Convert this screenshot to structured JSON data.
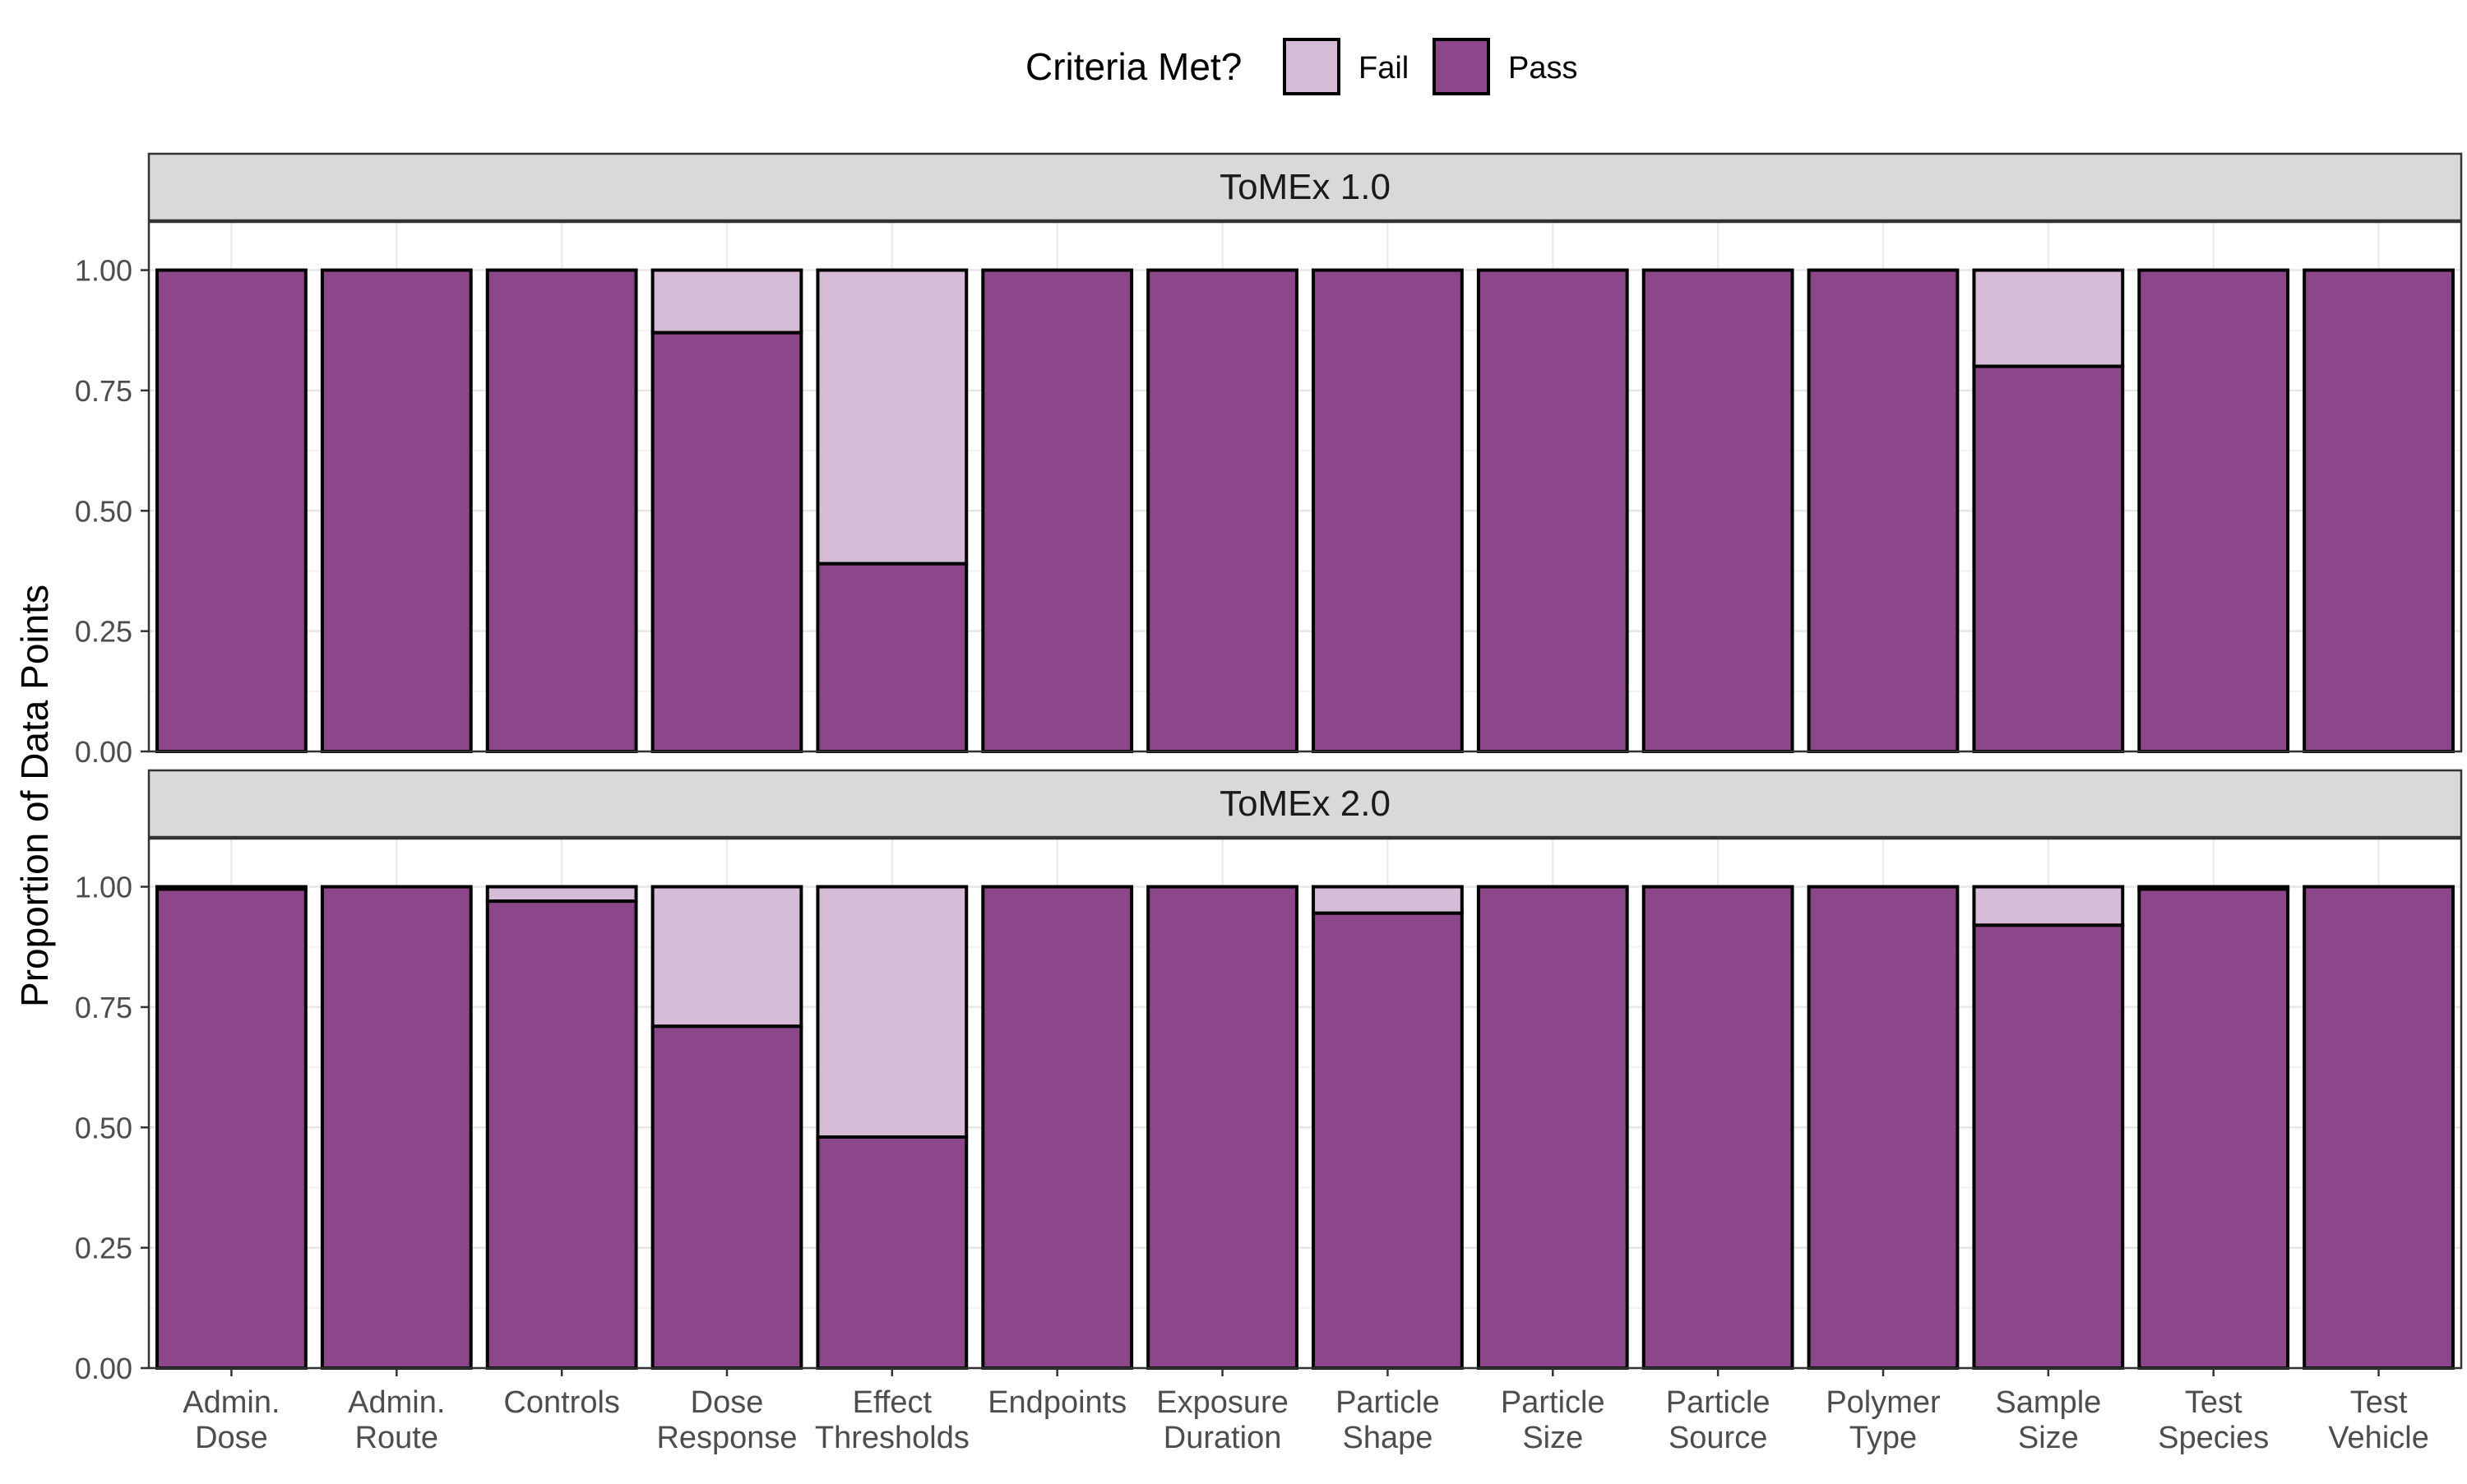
{
  "chart_data": {
    "type": "bar",
    "stacked": true,
    "ylabel": "Proportion of Data Points",
    "xlabel": "",
    "ylim": [
      0,
      1.1
    ],
    "yticks": [
      "0.00",
      "0.25",
      "0.50",
      "0.75",
      "1.00"
    ],
    "grid": true,
    "legend": {
      "title": "Criteria Met?",
      "position": "top",
      "entries": [
        {
          "name": "Fail",
          "color": "#d6bcd6"
        },
        {
          "name": "Pass",
          "color": "#8b4789"
        }
      ]
    },
    "categories": [
      "Admin.\nDose",
      "Admin.\nRoute",
      "Controls",
      "Dose\nResponse",
      "Effect\nThresholds",
      "Endpoints",
      "Exposure\nDuration",
      "Particle\nShape",
      "Particle\nSize",
      "Particle\nSource",
      "Polymer\nType",
      "Sample\nSize",
      "Test\nSpecies",
      "Test\nVehicle"
    ],
    "panels": [
      {
        "title": "ToMEx 1.0",
        "series": [
          {
            "name": "Pass",
            "values": [
              1.0,
              1.0,
              1.0,
              0.87,
              0.39,
              1.0,
              1.0,
              1.0,
              1.0,
              1.0,
              1.0,
              0.8,
              1.0,
              1.0
            ]
          },
          {
            "name": "Fail",
            "values": [
              0.0,
              0.0,
              0.0,
              0.13,
              0.61,
              0.0,
              0.0,
              0.0,
              0.0,
              0.0,
              0.0,
              0.2,
              0.0,
              0.0
            ]
          }
        ]
      },
      {
        "title": "ToMEx 2.0",
        "series": [
          {
            "name": "Pass",
            "values": [
              0.995,
              1.0,
              0.97,
              0.71,
              0.48,
              1.0,
              1.0,
              0.945,
              1.0,
              1.0,
              1.0,
              0.92,
              0.995,
              1.0
            ]
          },
          {
            "name": "Fail",
            "values": [
              0.005,
              0.0,
              0.03,
              0.29,
              0.52,
              0.0,
              0.0,
              0.055,
              0.0,
              0.0,
              0.0,
              0.08,
              0.005,
              0.0
            ]
          }
        ]
      }
    ]
  }
}
